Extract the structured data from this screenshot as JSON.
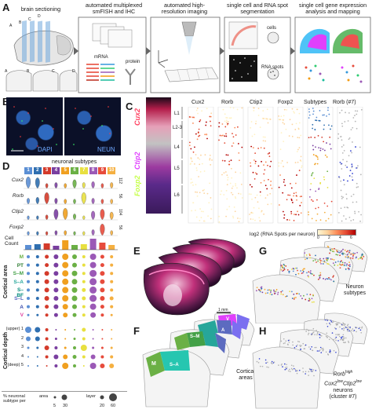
{
  "panel_a": {
    "label": "A",
    "steps": [
      {
        "title": "brain sectioning"
      },
      {
        "title": "automated multiplexed smFISH and IHC",
        "sub1": "mRNA",
        "sub2": "protein"
      },
      {
        "title": "automated high-resolution imaging"
      },
      {
        "title": "single cell and RNA spot segmentation",
        "sub1": "cells",
        "sub2": "RNA spots"
      },
      {
        "title": "single cell gene expression analysis and mapping"
      }
    ],
    "section_letters": [
      "A",
      "B",
      "C",
      "D",
      "A",
      "B",
      "C",
      "D"
    ]
  },
  "panel_b": {
    "label": "B",
    "dapi": "DAPI",
    "neun": "NEUN"
  },
  "panel_c": {
    "label": "C",
    "genes_vertical": [
      "Foxp2",
      "Ctip2",
      "Rorb",
      "Cux2"
    ],
    "layers": [
      "L1",
      "L2-3",
      "L4",
      "L5",
      "L6"
    ],
    "columns": [
      "Cux2",
      "Rorb",
      "Ctip2",
      "Foxp2",
      "Subtypes",
      "Rorb (#7)"
    ],
    "colorbar_label": "log2 (RNA Spots per neuron)",
    "colorbar_ticks": [
      "0",
      "2",
      "4",
      "6"
    ]
  },
  "panel_d": {
    "label": "D",
    "subtypes_title": "neuronal subtypes",
    "subtype_numbers": [
      "1",
      "2",
      "3",
      "4",
      "5",
      "6",
      "7",
      "8",
      "9",
      "10"
    ],
    "subtype_colors": [
      "#5b8fd4",
      "#2f6fb0",
      "#d43b2b",
      "#7a3fa0",
      "#f0a020",
      "#6bb045",
      "#e8e040",
      "#9b59b6",
      "#e74c3c",
      "#f5b041"
    ],
    "genes": [
      "Cux2",
      "Rorb",
      "Ctip2",
      "Foxp2"
    ],
    "gene_max": [
      "112",
      "56",
      "104",
      "56"
    ],
    "cell_count_label": "Cell Count",
    "cortical_area_title": "Cortical area",
    "areas": [
      "M",
      "PT",
      "S–M",
      "S–A",
      "S–BF",
      "S–L",
      "A",
      "V"
    ],
    "area_colors": [
      "#6bb045",
      "#2e7d32",
      "#43a047",
      "#26a69a",
      "#00897b",
      "#5c6bc0",
      "#3949ab",
      "#e040a0"
    ],
    "cortical_depth_title": "Cortical depth",
    "depths": [
      "(upper) 1",
      "2",
      "3",
      "4",
      "(deep) 5"
    ],
    "legend_title": "% neuronal subtype per",
    "legend_area": "area",
    "legend_layer": "layer",
    "legend_area_vals": [
      "5",
      "30"
    ],
    "legend_layer_vals": [
      "20",
      "60"
    ]
  },
  "panel_e": {
    "label": "E",
    "scale": "1 mm"
  },
  "panel_f": {
    "label": "F",
    "areas": [
      "M",
      "S–M",
      "S–A",
      "A",
      "V"
    ],
    "caption": "Cortical areas"
  },
  "panel_g": {
    "label": "G",
    "caption": "Neuron subtypes"
  },
  "panel_h": {
    "label": "H",
    "caption_1": "Rorb",
    "caption_2": "Cux2",
    "caption_3": "Ctip2",
    "caption_sup_1": "high",
    "caption_sup_2": "low",
    "caption_sup_3": "low",
    "caption_4": "neurons",
    "caption_5": "(cluster #7)"
  }
}
